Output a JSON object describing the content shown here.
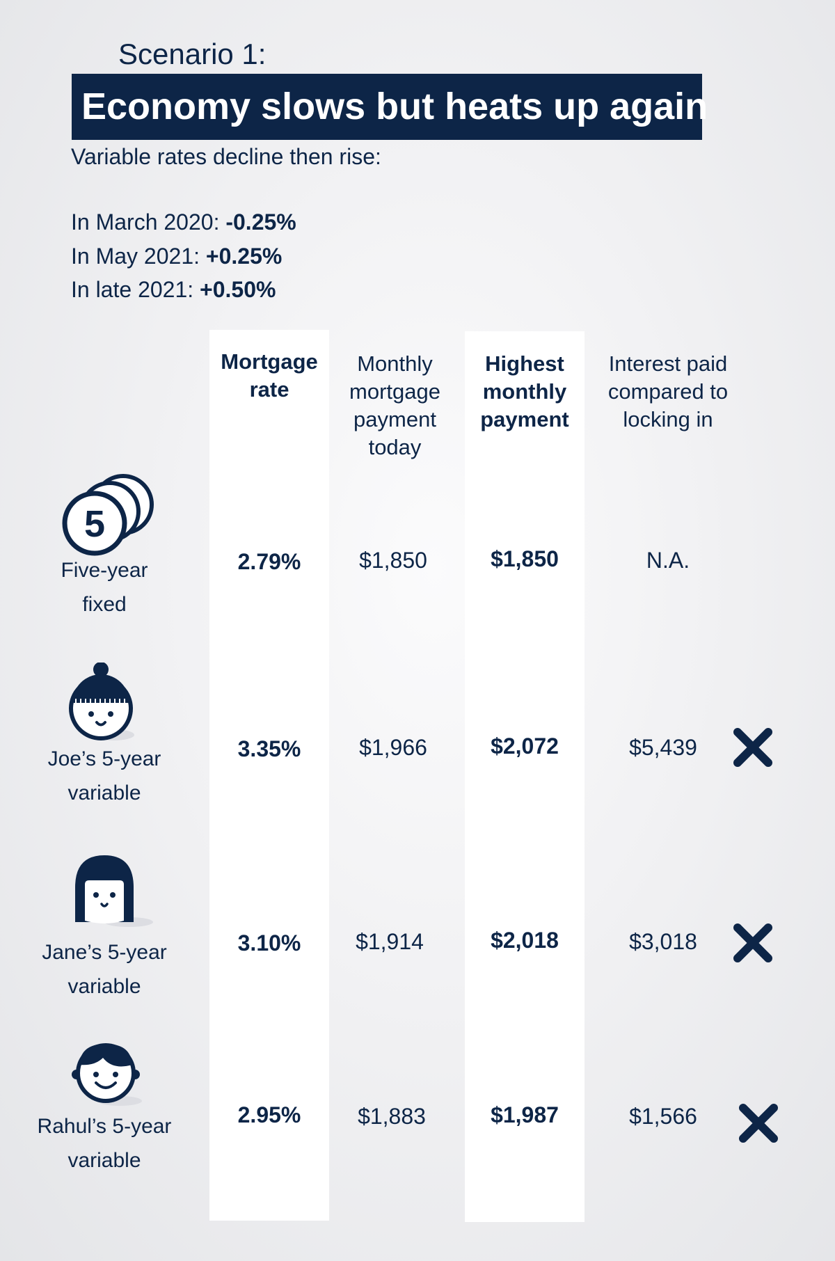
{
  "scenario": "Scenario 1:",
  "title": "Economy slows but heats up again",
  "subtitle": "Variable rates decline then rise:",
  "rate_changes": [
    {
      "label": "In March 2020: ",
      "value": "-0.25%"
    },
    {
      "label": "In May 2021: ",
      "value": "+0.25%"
    },
    {
      "label": "In late 2021: ",
      "value": "+0.50%"
    }
  ],
  "columns": [
    {
      "line1": "Mortgage",
      "line2": "rate",
      "line3": "",
      "line4": ""
    },
    {
      "line1": "Monthly",
      "line2": "mortgage",
      "line3": "payment",
      "line4": "today"
    },
    {
      "line1": "Highest",
      "line2": "monthly",
      "line3": "payment",
      "line4": ""
    },
    {
      "line1": "Interest paid",
      "line2": "compared to",
      "line3": "locking in",
      "line4": ""
    }
  ],
  "rows": [
    {
      "icon": "five-coins-icon",
      "coin_text": "5",
      "label1": "Five-year",
      "label2": "fixed",
      "rate": "2.79%",
      "payment_today": "$1,850",
      "highest_payment": "$1,850",
      "interest": "N.A.",
      "mark": ""
    },
    {
      "icon": "joe-face-icon",
      "label1": "Joe’s 5-year",
      "label2": "variable",
      "rate": "3.35%",
      "payment_today": "$1,966",
      "highest_payment": "$2,072",
      "interest": "$5,439",
      "mark": "x-icon"
    },
    {
      "icon": "jane-face-icon",
      "label1": "Jane’s 5-year",
      "label2": "variable",
      "rate": "3.10%",
      "payment_today": "$1,914",
      "highest_payment": "$2,018",
      "interest": "$3,018",
      "mark": "x-icon"
    },
    {
      "icon": "rahul-face-icon",
      "label1": "Rahul’s 5-year",
      "label2": "variable",
      "rate": "2.95%",
      "payment_today": "$1,883",
      "highest_payment": "$1,987",
      "interest": "$1,566",
      "mark": "x-icon"
    }
  ],
  "colors": {
    "navy": "#0d2547",
    "white": "#ffffff",
    "background": "#ededef"
  }
}
